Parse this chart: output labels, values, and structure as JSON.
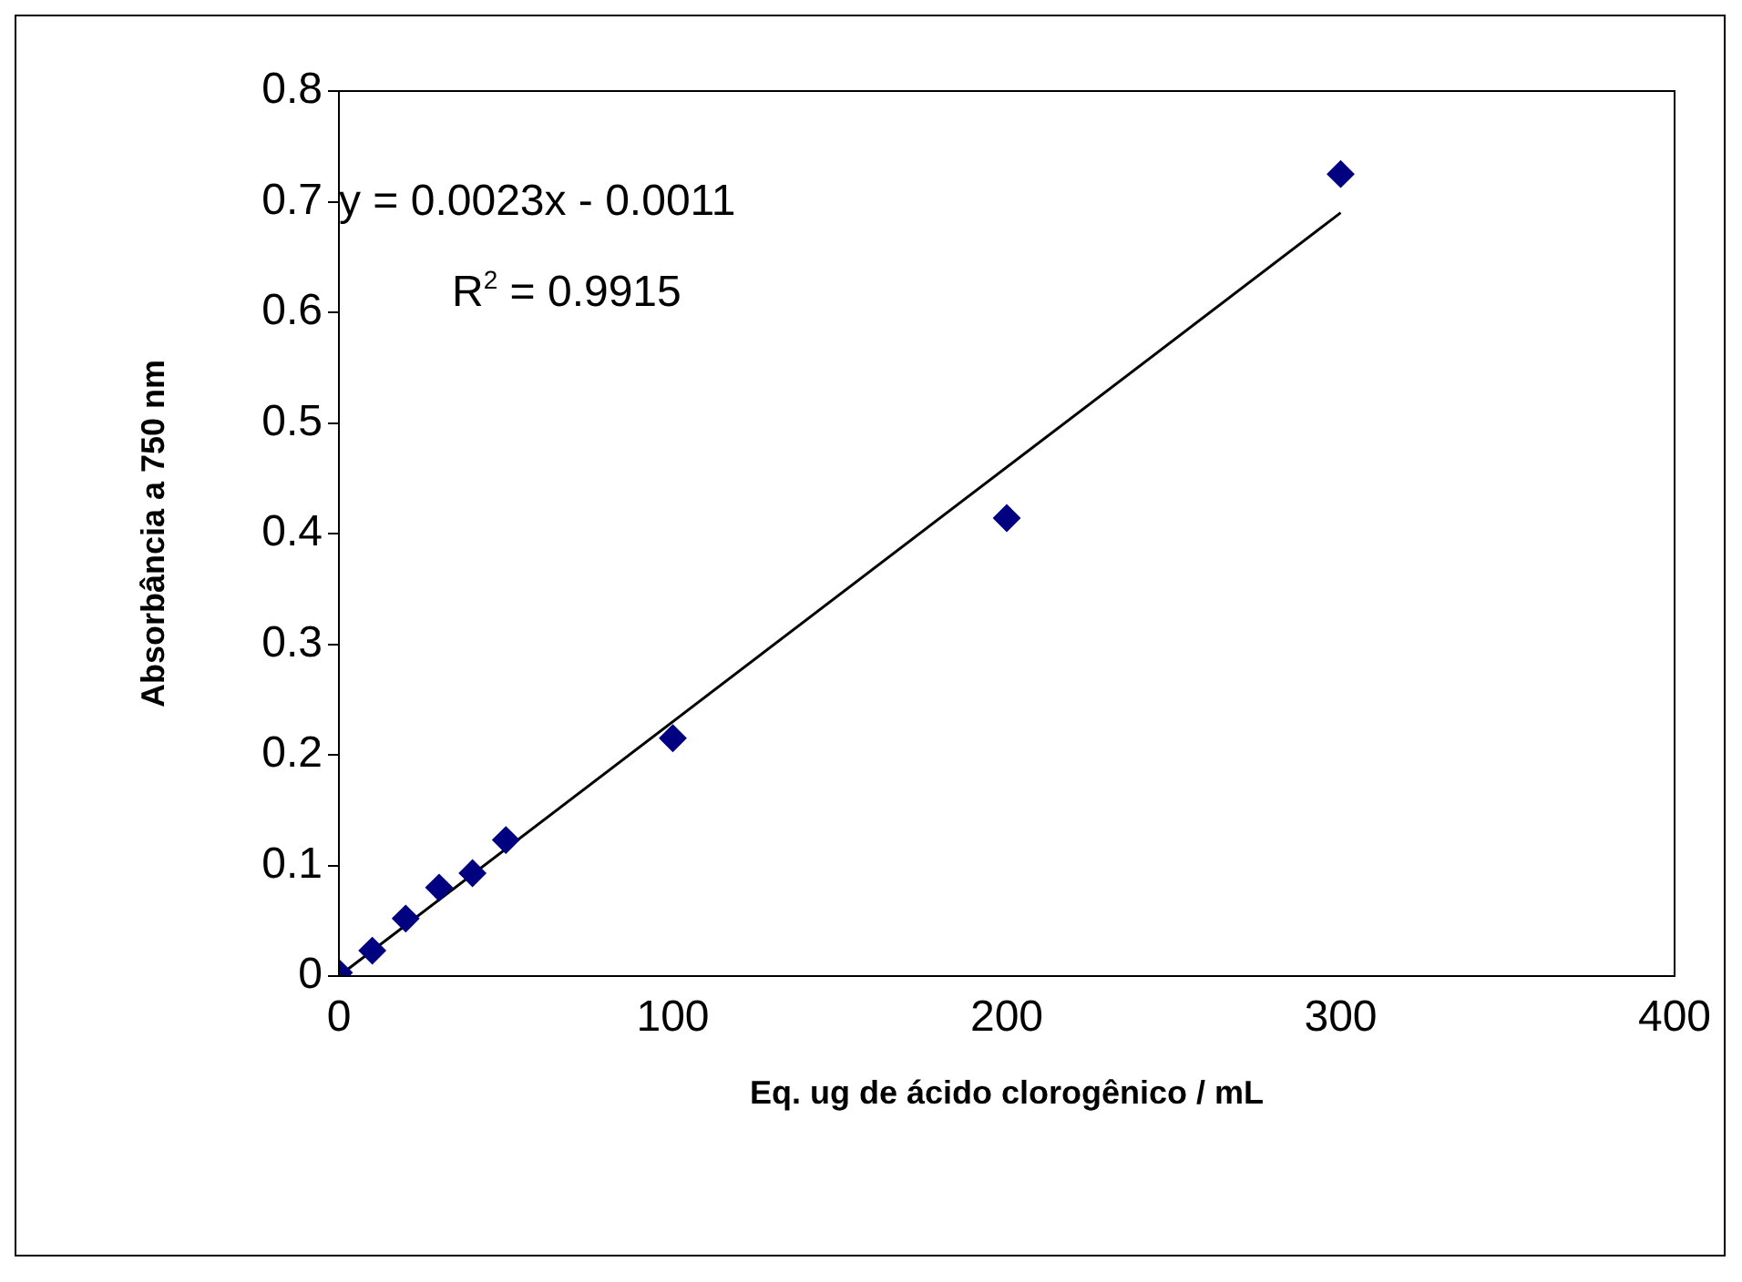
{
  "chart_data": {
    "type": "scatter",
    "xlabel": "Eq. ug de ácido clorogênico / mL",
    "ylabel": "Absorbância a 750 nm",
    "xlim": [
      0,
      400
    ],
    "xticks": [
      0,
      100,
      200,
      300,
      400
    ],
    "ylim": [
      0,
      0.8
    ],
    "yticks": [
      0,
      0.1,
      0.2,
      0.3,
      0.4,
      0.5,
      0.6,
      0.7,
      0.8
    ],
    "grid": false,
    "legend": false,
    "marker": "diamond",
    "series": [
      {
        "color": "#000080",
        "x": [
          0,
          10,
          20,
          30,
          40,
          50,
          100,
          200,
          300
        ],
        "values": [
          0.003,
          0.023,
          0.052,
          0.08,
          0.093,
          0.123,
          0.215,
          0.414,
          0.725
        ]
      },
      {
        "type": "line",
        "marker": "none",
        "color": "#000000",
        "x": [
          0,
          300
        ],
        "values": [
          0,
          0.69
        ]
      }
    ],
    "annotations": [
      "y = 0.0023x - 0.0011",
      "R$^{2}$ = 0.9915"
    ]
  }
}
